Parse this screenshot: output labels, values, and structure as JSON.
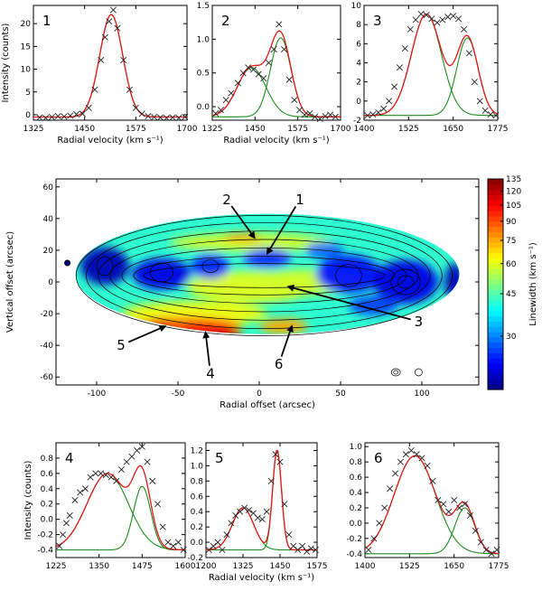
{
  "chart_data": [
    {
      "type": "line",
      "panel": "1",
      "label": "1",
      "xlim": [
        1325,
        1700
      ],
      "ylim": [
        -1.2,
        24
      ],
      "xticks": [
        1325,
        1450,
        1575,
        1700
      ],
      "yticks": [
        0,
        5,
        10,
        15,
        20
      ],
      "xlabel": "Radial velocity (km s⁻¹)",
      "ylabel": "Intensity (counts)",
      "show_xlabel": true,
      "show_ylabel": true,
      "comp1": [
        1515,
        22.5,
        28
      ],
      "comp2": null,
      "baseline": -0.5,
      "points": [
        [
          1340,
          -0.6
        ],
        [
          1355,
          -0.7
        ],
        [
          1370,
          -0.5
        ],
        [
          1385,
          -0.3
        ],
        [
          1400,
          -0.4
        ],
        [
          1415,
          -0.2
        ],
        [
          1430,
          0.1
        ],
        [
          1445,
          0.2
        ],
        [
          1460,
          1.5
        ],
        [
          1475,
          5.5
        ],
        [
          1490,
          12
        ],
        [
          1500,
          17
        ],
        [
          1510,
          20.5
        ],
        [
          1520,
          23
        ],
        [
          1530,
          19
        ],
        [
          1545,
          12
        ],
        [
          1560,
          5.5
        ],
        [
          1575,
          1.5
        ],
        [
          1590,
          0.2
        ],
        [
          1605,
          -0.3
        ],
        [
          1620,
          -0.5
        ],
        [
          1635,
          -0.6
        ],
        [
          1650,
          -0.7
        ],
        [
          1665,
          -0.6
        ],
        [
          1680,
          -0.7
        ],
        [
          1695,
          -0.5
        ]
      ]
    },
    {
      "type": "line",
      "panel": "2",
      "label": "2",
      "xlim": [
        1325,
        1700
      ],
      "ylim": [
        -0.2,
        1.5
      ],
      "xticks": [
        1325,
        1450,
        1575,
        1700
      ],
      "yticks": [
        0.0,
        0.5,
        1.0,
        1.5
      ],
      "xlabel": "Radial velocity (km s⁻¹)",
      "ylabel": "",
      "show_xlabel": true,
      "show_ylabel": false,
      "comp1": [
        1440,
        0.73,
        42
      ],
      "comp2": [
        1525,
        1.17,
        30
      ],
      "baseline": -0.15,
      "points": [
        [
          1335,
          -0.1
        ],
        [
          1350,
          -0.05
        ],
        [
          1365,
          0.1
        ],
        [
          1380,
          0.2
        ],
        [
          1400,
          0.35
        ],
        [
          1415,
          0.5
        ],
        [
          1430,
          0.58
        ],
        [
          1445,
          0.55
        ],
        [
          1460,
          0.48
        ],
        [
          1475,
          0.42
        ],
        [
          1490,
          0.65
        ],
        [
          1505,
          0.85
        ],
        [
          1520,
          1.22
        ],
        [
          1535,
          0.85
        ],
        [
          1550,
          0.4
        ],
        [
          1565,
          0.1
        ],
        [
          1580,
          -0.05
        ],
        [
          1595,
          -0.12
        ],
        [
          1610,
          -0.1
        ],
        [
          1625,
          -0.15
        ],
        [
          1640,
          -0.18
        ],
        [
          1655,
          -0.14
        ],
        [
          1670,
          -0.12
        ],
        [
          1685,
          -0.15
        ]
      ]
    },
    {
      "type": "line",
      "panel": "3",
      "label": "3",
      "xlim": [
        1400,
        1775
      ],
      "ylim": [
        -2,
        10
      ],
      "xticks": [
        1400,
        1525,
        1650,
        1775
      ],
      "yticks": [
        -2,
        0,
        2,
        4,
        6,
        8,
        10
      ],
      "xlabel": "",
      "ylabel": "",
      "show_xlabel": false,
      "show_ylabel": false,
      "comp1": [
        1575,
        10.6,
        42
      ],
      "comp2": [
        1690,
        8.1,
        30
      ],
      "baseline": -1.5,
      "points": [
        [
          1410,
          -1.5
        ],
        [
          1425,
          -1.4
        ],
        [
          1440,
          -1.2
        ],
        [
          1455,
          -0.8
        ],
        [
          1470,
          0
        ],
        [
          1485,
          1.5
        ],
        [
          1500,
          3.5
        ],
        [
          1515,
          5.5
        ],
        [
          1530,
          7.5
        ],
        [
          1545,
          8.5
        ],
        [
          1560,
          9.1
        ],
        [
          1575,
          9
        ],
        [
          1590,
          8.6
        ],
        [
          1605,
          8.2
        ],
        [
          1620,
          8.5
        ],
        [
          1635,
          8.8
        ],
        [
          1650,
          8.9
        ],
        [
          1665,
          8.6
        ],
        [
          1680,
          7.5
        ],
        [
          1695,
          5
        ],
        [
          1710,
          2
        ],
        [
          1725,
          0
        ],
        [
          1740,
          -1
        ],
        [
          1755,
          -1.4
        ],
        [
          1770,
          -1.5
        ]
      ]
    },
    {
      "type": "line",
      "panel": "4",
      "label": "4",
      "xlim": [
        1225,
        1600
      ],
      "ylim": [
        -0.5,
        1.0
      ],
      "xticks": [
        1225,
        1350,
        1475,
        1600
      ],
      "yticks": [
        -0.4,
        -0.2,
        0.0,
        0.2,
        0.4,
        0.6,
        0.8
      ],
      "xlabel": "",
      "ylabel": "Intensity (counts)",
      "show_xlabel": false,
      "show_ylabel": true,
      "comp1": [
        1375,
        1.0,
        60
      ],
      "comp2": [
        1475,
        0.83,
        25
      ],
      "baseline": -0.4,
      "points": [
        [
          1235,
          -0.35
        ],
        [
          1245,
          -0.2
        ],
        [
          1255,
          -0.05
        ],
        [
          1265,
          0.05
        ],
        [
          1280,
          0.25
        ],
        [
          1295,
          0.35
        ],
        [
          1310,
          0.4
        ],
        [
          1325,
          0.55
        ],
        [
          1340,
          0.6
        ],
        [
          1355,
          0.6
        ],
        [
          1370,
          0.58
        ],
        [
          1385,
          0.55
        ],
        [
          1400,
          0.5
        ],
        [
          1415,
          0.65
        ],
        [
          1430,
          0.75
        ],
        [
          1445,
          0.82
        ],
        [
          1460,
          0.9
        ],
        [
          1475,
          0.95
        ],
        [
          1490,
          0.75
        ],
        [
          1505,
          0.5
        ],
        [
          1520,
          0.2
        ],
        [
          1535,
          -0.1
        ],
        [
          1550,
          -0.3
        ],
        [
          1565,
          -0.35
        ],
        [
          1580,
          -0.3
        ],
        [
          1595,
          -0.4
        ]
      ]
    },
    {
      "type": "line",
      "panel": "5",
      "label": "5",
      "xlim": [
        1200,
        1575
      ],
      "ylim": [
        -0.2,
        1.3
      ],
      "xticks": [
        1200,
        1325,
        1450,
        1575
      ],
      "yticks": [
        -0.2,
        0.0,
        0.2,
        0.4,
        0.6,
        0.8,
        1.0,
        1.2
      ],
      "xlabel": "Radial velocity (km s⁻¹)",
      "ylabel": "",
      "show_xlabel": true,
      "show_ylabel": false,
      "comp1": [
        1325,
        0.55,
        36
      ],
      "comp2": [
        1440,
        1.3,
        15
      ],
      "baseline": -0.1,
      "points": [
        [
          1210,
          -0.1
        ],
        [
          1225,
          -0.05
        ],
        [
          1240,
          0
        ],
        [
          1255,
          -0.1
        ],
        [
          1270,
          0.1
        ],
        [
          1285,
          0.25
        ],
        [
          1300,
          0.35
        ],
        [
          1315,
          0.4
        ],
        [
          1330,
          0.45
        ],
        [
          1345,
          0.42
        ],
        [
          1360,
          0.38
        ],
        [
          1375,
          0.32
        ],
        [
          1390,
          0.3
        ],
        [
          1405,
          0.4
        ],
        [
          1420,
          0.8
        ],
        [
          1435,
          1.15
        ],
        [
          1450,
          1.05
        ],
        [
          1465,
          0.5
        ],
        [
          1480,
          0.1
        ],
        [
          1495,
          -0.05
        ],
        [
          1510,
          -0.1
        ],
        [
          1525,
          -0.05
        ],
        [
          1540,
          -0.12
        ],
        [
          1555,
          -0.08
        ],
        [
          1570,
          -0.1
        ]
      ]
    },
    {
      "type": "line",
      "panel": "6",
      "label": "6",
      "xlim": [
        1400,
        1775
      ],
      "ylim": [
        -0.45,
        1.05
      ],
      "xticks": [
        1400,
        1525,
        1650,
        1775
      ],
      "yticks": [
        -0.4,
        -0.2,
        0.0,
        0.2,
        0.4,
        0.6,
        0.8,
        1.0
      ],
      "xlabel": "",
      "ylabel": "",
      "show_xlabel": false,
      "show_ylabel": false,
      "comp1": [
        1540,
        1.28,
        58
      ],
      "comp2": [
        1680,
        0.6,
        28
      ],
      "baseline": -0.4,
      "points": [
        [
          1410,
          -0.35
        ],
        [
          1425,
          -0.2
        ],
        [
          1440,
          0
        ],
        [
          1455,
          0.2
        ],
        [
          1470,
          0.45
        ],
        [
          1485,
          0.65
        ],
        [
          1500,
          0.8
        ],
        [
          1515,
          0.9
        ],
        [
          1530,
          0.95
        ],
        [
          1545,
          0.9
        ],
        [
          1560,
          0.85
        ],
        [
          1575,
          0.75
        ],
        [
          1590,
          0.55
        ],
        [
          1605,
          0.3
        ],
        [
          1620,
          0.25
        ],
        [
          1635,
          0.15
        ],
        [
          1650,
          0.3
        ],
        [
          1665,
          0.2
        ],
        [
          1680,
          0.25
        ],
        [
          1695,
          0.1
        ],
        [
          1710,
          -0.1
        ],
        [
          1725,
          -0.25
        ],
        [
          1740,
          -0.35
        ],
        [
          1755,
          -0.4
        ],
        [
          1770,
          -0.35
        ]
      ]
    },
    {
      "type": "heatmap",
      "panel": "map",
      "xlim": [
        -125,
        135
      ],
      "ylim": [
        -65,
        65
      ],
      "xticks": [
        -100,
        -50,
        0,
        50,
        100
      ],
      "yticks": [
        -60,
        -40,
        -20,
        0,
        20,
        40,
        60
      ],
      "xlabel": "Radial offset (arcsec)",
      "ylabel": "Vertical offset (arcsec)",
      "colorbar_label": "Linewidth (km s⁻¹)",
      "colorbar_range": [
        18,
        135
      ],
      "colorbar_ticks": [
        30,
        45,
        60,
        75,
        90,
        105,
        120,
        135
      ],
      "ellipse": {
        "cx": 5,
        "cy": 5,
        "rx": 118,
        "ry": 38
      },
      "spots": [
        {
          "x": -5,
          "y": -3,
          "rx": 40,
          "ry": 10,
          "v": 60
        },
        {
          "x": 30,
          "y": 0,
          "rx": 35,
          "ry": 8,
          "v": 58
        },
        {
          "x": -40,
          "y": -20,
          "rx": 45,
          "ry": 8,
          "v": 62
        },
        {
          "x": -45,
          "y": -28,
          "rx": 35,
          "ry": 6,
          "v": 80
        },
        {
          "x": -35,
          "y": -30,
          "rx": 20,
          "ry": 5,
          "v": 105
        },
        {
          "x": -20,
          "y": -35,
          "rx": 10,
          "ry": 4,
          "v": 125
        },
        {
          "x": -60,
          "y": -28,
          "rx": 10,
          "ry": 4,
          "v": 110
        },
        {
          "x": -5,
          "y": 25,
          "rx": 50,
          "ry": 6,
          "v": 58
        },
        {
          "x": -10,
          "y": 28,
          "rx": 12,
          "ry": 3,
          "v": 75
        },
        {
          "x": 15,
          "y": -28,
          "rx": 15,
          "ry": 5,
          "v": 75
        },
        {
          "x": -95,
          "y": 10,
          "rx": 15,
          "ry": 12,
          "v": 20
        },
        {
          "x": -60,
          "y": 5,
          "rx": 18,
          "ry": 10,
          "v": 22
        },
        {
          "x": -30,
          "y": 10,
          "rx": 12,
          "ry": 8,
          "v": 25
        },
        {
          "x": 5,
          "y": 15,
          "rx": 15,
          "ry": 6,
          "v": 25
        },
        {
          "x": 55,
          "y": 5,
          "rx": 20,
          "ry": 12,
          "v": 24
        },
        {
          "x": 90,
          "y": 0,
          "rx": 20,
          "ry": 14,
          "v": 22
        },
        {
          "x": 120,
          "y": 0,
          "rx": 6,
          "ry": 12,
          "v": 20
        },
        {
          "x": 70,
          "y": -15,
          "rx": 15,
          "ry": 6,
          "v": 26
        },
        {
          "x": 40,
          "y": 20,
          "rx": 12,
          "ry": 5,
          "v": 28
        }
      ],
      "labels": [
        {
          "text": "1",
          "tx": 25,
          "ty": 52,
          "ax": 5,
          "ay": 18
        },
        {
          "text": "2",
          "tx": -20,
          "ty": 52,
          "ax": -3,
          "ay": 28
        },
        {
          "text": "3",
          "tx": 98,
          "ty": -25,
          "ax": 18,
          "ay": -3
        },
        {
          "text": "4",
          "tx": -30,
          "ty": -58,
          "ax": -33,
          "ay": -32
        },
        {
          "text": "5",
          "tx": -85,
          "ty": -40,
          "ax": -58,
          "ay": -28
        },
        {
          "text": "6",
          "tx": 12,
          "ty": -52,
          "ax": 20,
          "ay": -28
        }
      ]
    }
  ]
}
